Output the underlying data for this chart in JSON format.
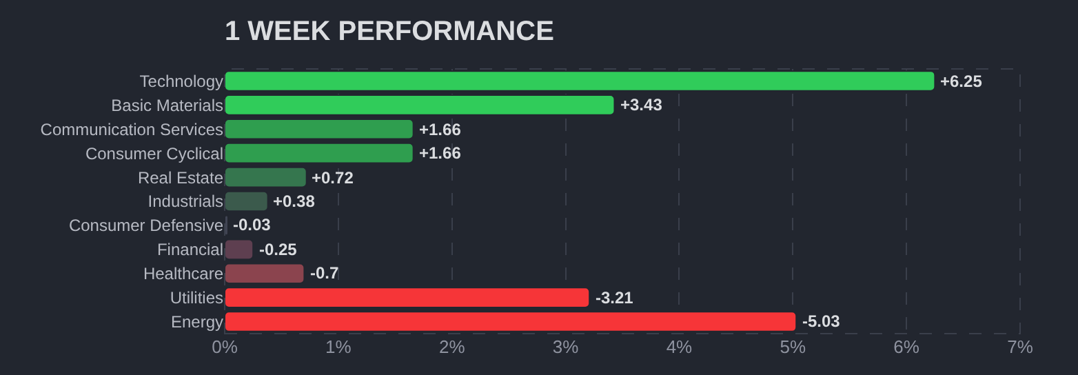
{
  "chart_data": {
    "type": "bar",
    "orientation": "horizontal",
    "title": "1 WEEK PERFORMANCE",
    "categories": [
      "Technology",
      "Basic Materials",
      "Communication Services",
      "Consumer Cyclical",
      "Real Estate",
      "Industrials",
      "Consumer Defensive",
      "Financial",
      "Healthcare",
      "Utilities",
      "Energy"
    ],
    "values": [
      6.25,
      3.43,
      1.66,
      1.66,
      0.72,
      0.38,
      -0.03,
      -0.25,
      -0.7,
      -3.21,
      -5.03
    ],
    "base": [
      0,
      0,
      0,
      0,
      0,
      0,
      0.03,
      0.25,
      0.7,
      3.21,
      5.03
    ],
    "value_labels": [
      "+6.25",
      "+3.43",
      "+1.66",
      "+1.66",
      "+0.72",
      "+0.38",
      "-0.03",
      "-0.25",
      "-0.7",
      "-3.21",
      "-5.03"
    ],
    "colors": [
      "#30cc5a",
      "#30cc5a",
      "#2f9e4f",
      "#2f9e4f",
      "#35764e",
      "#3b5a4c",
      "#414554",
      "#5e3f50",
      "#8b444e",
      "#f63538",
      "#f63538"
    ],
    "xlim": [
      0,
      7
    ],
    "xticks": [
      {
        "value": 0,
        "label": "0%"
      },
      {
        "value": 1,
        "label": "1%"
      },
      {
        "value": 2,
        "label": "2%"
      },
      {
        "value": 3,
        "label": "3%"
      },
      {
        "value": 4,
        "label": "4%"
      },
      {
        "value": 5,
        "label": "5%"
      },
      {
        "value": 6,
        "label": "6%"
      },
      {
        "value": 7,
        "label": "7%"
      }
    ],
    "grid": "x",
    "legend": false
  }
}
